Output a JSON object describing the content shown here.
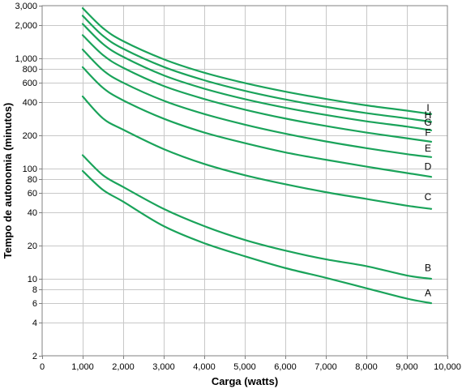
{
  "chart_data": {
    "type": "line",
    "title": "",
    "xlabel": "Carga (watts)",
    "ylabel": "Tempo de autonomia (minutos)",
    "xlim": [
      0,
      10000
    ],
    "ylim": [
      2,
      3000
    ],
    "y_scale": "log",
    "grid": true,
    "legend": "none",
    "line_color": "#1aa35a",
    "grid_color": "#c8c8c8",
    "x_ticks": [
      0,
      1000,
      2000,
      3000,
      4000,
      5000,
      6000,
      7000,
      8000,
      9000,
      10000
    ],
    "x_tick_labels": [
      "0",
      "1,000",
      "2,000",
      "3,000",
      "4,000",
      "5,000",
      "6,000",
      "7,000",
      "8,000",
      "9,000",
      "10,000"
    ],
    "y_ticks": [
      2,
      4,
      6,
      8,
      10,
      20,
      40,
      60,
      80,
      100,
      200,
      400,
      600,
      800,
      1000,
      2000,
      3000
    ],
    "y_tick_labels": [
      "2",
      "4",
      "6",
      "8",
      "10",
      "20",
      "40",
      "60",
      "80",
      "100",
      "200",
      "400",
      "600",
      "800",
      "1,000",
      "2,000",
      "3,000"
    ],
    "x": [
      1000,
      1500,
      2000,
      3000,
      4000,
      5000,
      6000,
      7000,
      8000,
      9000,
      9600
    ],
    "series": [
      {
        "name": "A",
        "values": [
          95,
          64,
          50,
          30,
          21,
          16,
          12.5,
          10.2,
          8.2,
          6.6,
          6
        ]
      },
      {
        "name": "B",
        "values": [
          132,
          87,
          68,
          43,
          30,
          22.5,
          18,
          15,
          13,
          10.7,
          10
        ]
      },
      {
        "name": "C",
        "values": [
          450,
          285,
          225,
          150,
          110,
          87,
          72,
          61,
          53,
          46,
          43
        ]
      },
      {
        "name": "D",
        "values": [
          830,
          540,
          415,
          283,
          212,
          170,
          140,
          120,
          104,
          91,
          84
        ]
      },
      {
        "name": "E",
        "values": [
          1200,
          780,
          600,
          412,
          312,
          250,
          207,
          176,
          153,
          135,
          127
        ]
      },
      {
        "name": "F",
        "values": [
          1620,
          1070,
          820,
          560,
          427,
          342,
          284,
          243,
          212,
          188,
          175
        ]
      },
      {
        "name": "G",
        "values": [
          2050,
          1350,
          1030,
          700,
          530,
          426,
          356,
          306,
          268,
          240,
          222
        ]
      },
      {
        "name": "H",
        "values": [
          2430,
          1600,
          1220,
          835,
          632,
          507,
          423,
          363,
          318,
          285,
          265
        ]
      },
      {
        "name": "I",
        "values": [
          2850,
          1880,
          1430,
          980,
          740,
          596,
          498,
          428,
          374,
          335,
          312
        ]
      }
    ],
    "label_text_values": {
      "A": 7.4,
      "B": 12.6,
      "C": 55,
      "D": 104,
      "E": 153,
      "F": 212,
      "G": 261,
      "H": 306,
      "I": 356
    }
  }
}
